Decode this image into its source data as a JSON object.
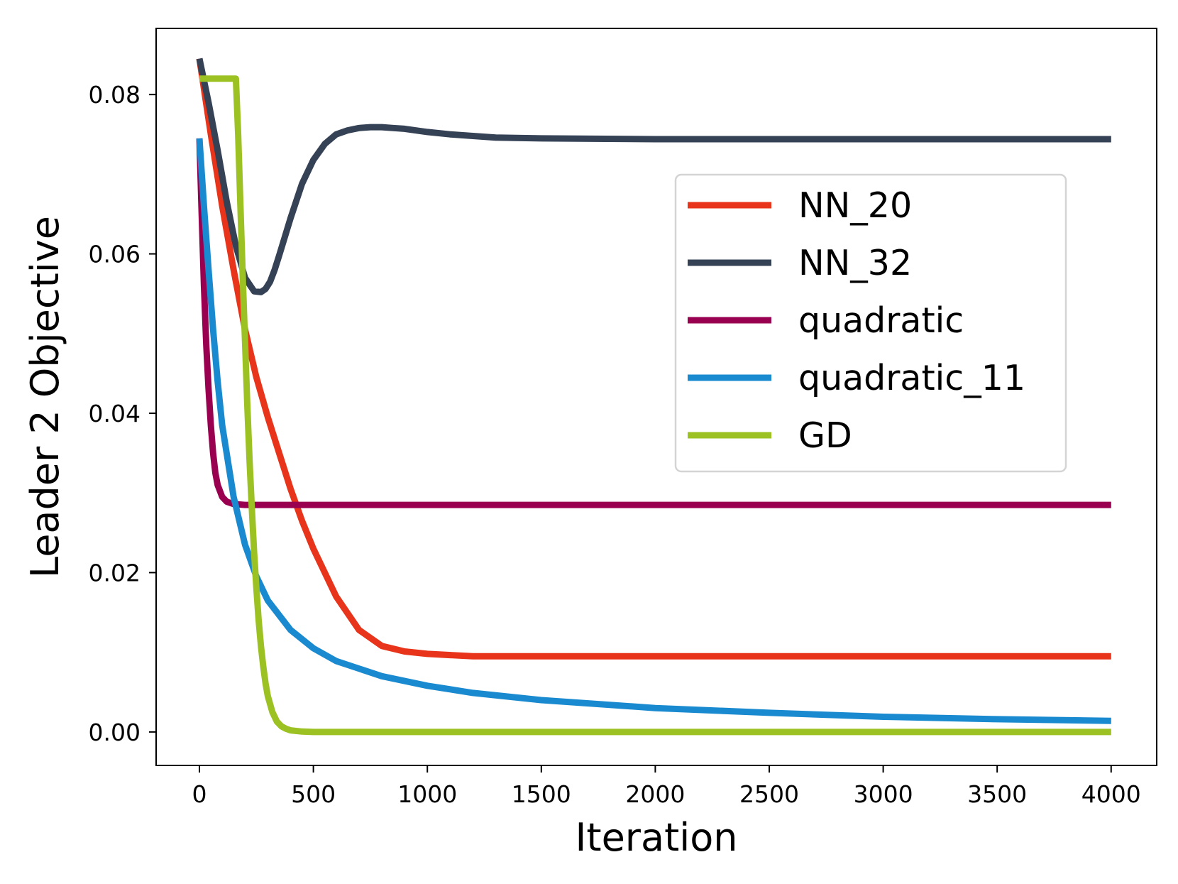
{
  "chart_data": {
    "type": "line",
    "title": "",
    "xlabel": "Iteration",
    "ylabel": "Leader 2 Objective",
    "xlim": [
      -190,
      4200
    ],
    "ylim": [
      -0.0042,
      0.0883
    ],
    "xticks": [
      0,
      500,
      1000,
      1500,
      2000,
      2500,
      3000,
      3500,
      4000
    ],
    "xtick_labels": [
      "0",
      "500",
      "1000",
      "1500",
      "2000",
      "2500",
      "3000",
      "3500",
      "4000"
    ],
    "yticks": [
      0.0,
      0.02,
      0.04,
      0.06,
      0.08
    ],
    "ytick_labels": [
      "0.00",
      "0.02",
      "0.04",
      "0.06",
      "0.08"
    ],
    "grid": false,
    "legend_position": "upper-right",
    "series": [
      {
        "name": "NN_20",
        "color": "#e8341a",
        "x": [
          0,
          50,
          100,
          150,
          200,
          250,
          300,
          350,
          400,
          450,
          500,
          600,
          700,
          800,
          900,
          1000,
          1200,
          1500,
          2000,
          2500,
          3000,
          3500,
          4000
        ],
        "y": [
          0.0845,
          0.075,
          0.066,
          0.058,
          0.0505,
          0.0445,
          0.0395,
          0.035,
          0.0305,
          0.0265,
          0.023,
          0.017,
          0.0128,
          0.0108,
          0.0101,
          0.0098,
          0.0095,
          0.0095,
          0.0095,
          0.0095,
          0.0095,
          0.0095,
          0.0095
        ]
      },
      {
        "name": "NN_32",
        "color": "#354155",
        "x": [
          0,
          40,
          80,
          120,
          160,
          200,
          240,
          270,
          290,
          310,
          330,
          350,
          400,
          450,
          500,
          550,
          600,
          650,
          700,
          750,
          800,
          850,
          900,
          1000,
          1100,
          1200,
          1300,
          1500,
          2000,
          2500,
          3000,
          3500,
          4000
        ],
        "y": [
          0.0845,
          0.079,
          0.073,
          0.0665,
          0.061,
          0.057,
          0.0553,
          0.0552,
          0.0556,
          0.0565,
          0.058,
          0.0598,
          0.0645,
          0.0688,
          0.0718,
          0.0738,
          0.075,
          0.0755,
          0.0758,
          0.0759,
          0.0759,
          0.0758,
          0.0757,
          0.0753,
          0.075,
          0.0748,
          0.0746,
          0.0745,
          0.0744,
          0.0744,
          0.0744,
          0.0744,
          0.0744
        ]
      },
      {
        "name": "quadratic",
        "color": "#990050",
        "x": [
          0,
          10,
          20,
          30,
          40,
          50,
          60,
          70,
          80,
          100,
          120,
          150,
          200,
          300,
          500,
          1000,
          2000,
          3000,
          4000
        ],
        "y": [
          0.0745,
          0.065,
          0.056,
          0.0485,
          0.043,
          0.0385,
          0.035,
          0.0325,
          0.031,
          0.0295,
          0.0289,
          0.0286,
          0.0285,
          0.0285,
          0.0285,
          0.0285,
          0.0285,
          0.0285,
          0.0285
        ]
      },
      {
        "name": "quadratic_11",
        "color": "#1a8ad0",
        "x": [
          0,
          20,
          40,
          60,
          80,
          100,
          150,
          200,
          250,
          300,
          400,
          500,
          600,
          800,
          1000,
          1200,
          1500,
          2000,
          2500,
          3000,
          3500,
          4000
        ],
        "y": [
          0.0745,
          0.066,
          0.058,
          0.0505,
          0.044,
          0.0385,
          0.0295,
          0.0235,
          0.0195,
          0.0165,
          0.0128,
          0.0105,
          0.0089,
          0.007,
          0.0058,
          0.0049,
          0.004,
          0.003,
          0.0024,
          0.0019,
          0.0016,
          0.0014
        ]
      },
      {
        "name": "GD",
        "color": "#9cc123",
        "x": [
          0,
          160,
          170,
          180,
          190,
          200,
          210,
          220,
          230,
          240,
          250,
          260,
          270,
          280,
          290,
          300,
          320,
          340,
          360,
          380,
          400,
          450,
          500,
          600,
          1000,
          2000,
          3000,
          4000
        ],
        "y": [
          0.082,
          0.082,
          0.075,
          0.066,
          0.057,
          0.049,
          0.041,
          0.034,
          0.028,
          0.0225,
          0.018,
          0.014,
          0.0108,
          0.0082,
          0.0061,
          0.0045,
          0.0025,
          0.0013,
          0.0007,
          0.0004,
          0.0002,
          5e-05,
          0.0,
          0.0,
          0.0,
          0.0,
          0.0,
          0.0
        ]
      }
    ]
  }
}
